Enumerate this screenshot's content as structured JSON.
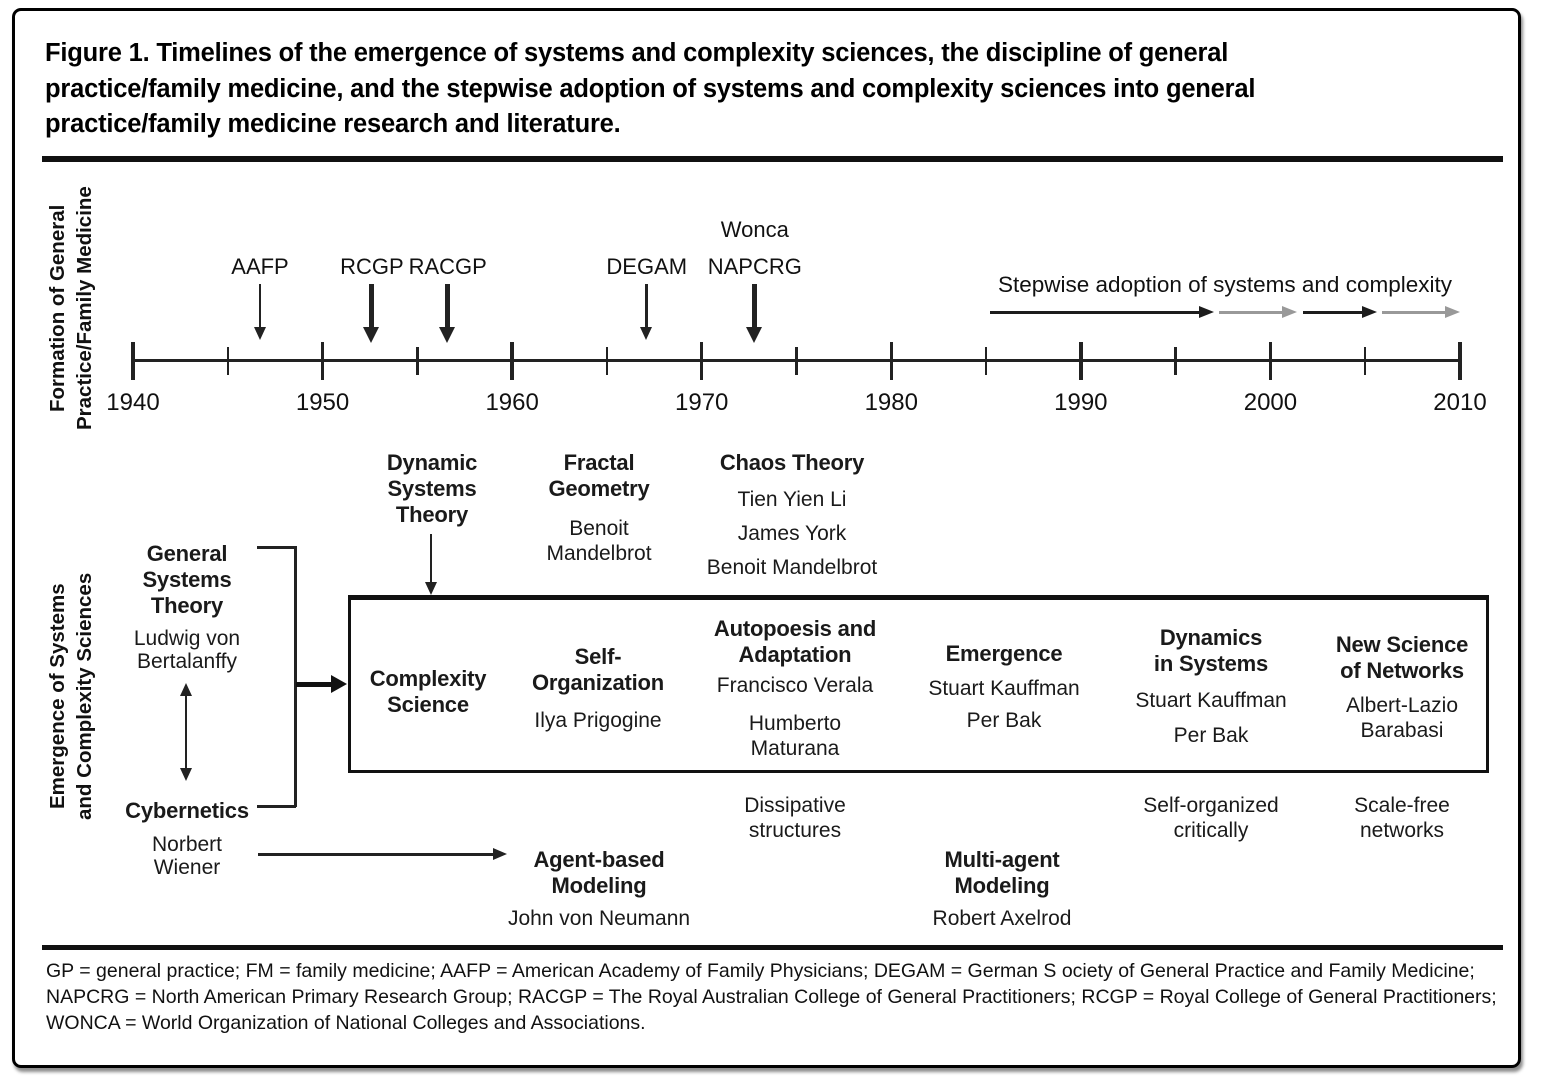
{
  "colors": {
    "ink": "#1a1a1a",
    "line": "#222222",
    "dark_arrow": "#1c1c1c",
    "gray_arrow": "#999999",
    "background": "#ffffff"
  },
  "title": {
    "lines": [
      "Figure 1. Timelines of the emergence of systems and complexity sciences, the discipline of general",
      "practice/family medicine, and the stepwise adoption of systems and complexity sciences into general",
      "practice/family medicine research and literature."
    ]
  },
  "top_section": {
    "side_label_lines": [
      "Formation of General",
      "Practice/Family Medicine"
    ],
    "timeline": {
      "start_year": 1940,
      "end_year": 2010,
      "minor_step": 5,
      "label_step": 10,
      "year_labels": [
        "1940",
        "1950",
        "1960",
        "1970",
        "1980",
        "1990",
        "2000",
        "2010"
      ]
    },
    "events": [
      {
        "label_lines": [
          "AAFP"
        ],
        "year": 1946.7,
        "weight": "thin"
      },
      {
        "label_lines": [
          "RCGP"
        ],
        "year": 1952.6,
        "weight": "thick"
      },
      {
        "label_lines": [
          "RACGP"
        ],
        "year": 1956.6,
        "weight": "thick"
      },
      {
        "label_lines": [
          "DEGAM"
        ],
        "year": 1967.1,
        "weight": "thin"
      },
      {
        "label_lines": [
          "Wonca",
          "NAPCRG"
        ],
        "year": 1972.8,
        "weight": "thick"
      }
    ],
    "stepwise_adoption": {
      "label": "Stepwise adoption of systems and complexity",
      "arrows": [
        {
          "from_year": 1985.2,
          "to_year": 1997.0,
          "tone": "dark"
        },
        {
          "from_year": 1997.3,
          "to_year": 2001.4,
          "tone": "gray"
        },
        {
          "from_year": 2001.7,
          "to_year": 2005.6,
          "tone": "dark"
        },
        {
          "from_year": 2005.9,
          "to_year": 2010.0,
          "tone": "gray"
        }
      ]
    }
  },
  "bottom_section": {
    "side_label_lines": [
      "Emergence of Systems",
      "and Complexity Sciences"
    ],
    "left_column": {
      "general_systems_theory": {
        "heading_lines": [
          "General",
          "Systems",
          "Theory"
        ],
        "person_lines": [
          "Ludwig von",
          "Bertalanffy"
        ]
      },
      "cybernetics": {
        "heading_lines": [
          "Cybernetics"
        ],
        "person_lines": [
          "Norbert",
          "Wiener"
        ]
      }
    },
    "pre_box_concepts": [
      {
        "heading_lines": [
          "Dynamic",
          "Systems",
          "Theory"
        ],
        "people": []
      },
      {
        "heading_lines": [
          "Fractal",
          "Geometry"
        ],
        "people": [
          [
            "Benoit",
            "Mandelbrot"
          ]
        ]
      },
      {
        "heading_lines": [
          "Chaos Theory"
        ],
        "people": [
          [
            "Tien Yien Li"
          ],
          [
            "James York"
          ],
          [
            "Benoit Mandelbrot"
          ]
        ]
      }
    ],
    "box_concepts": [
      {
        "heading_lines": [
          "Complexity",
          "Science"
        ],
        "people": []
      },
      {
        "heading_lines": [
          "Self-",
          "Organization"
        ],
        "people": [
          [
            "Ilya Prigogine"
          ]
        ]
      },
      {
        "heading_lines": [
          "Autopoesis and",
          "Adaptation"
        ],
        "people": [
          [
            "Francisco Verala"
          ],
          [
            "Humberto",
            "Maturana"
          ]
        ]
      },
      {
        "heading_lines": [
          "Emergence"
        ],
        "people": [
          [
            "Stuart Kauffman"
          ],
          [
            "Per Bak"
          ]
        ]
      },
      {
        "heading_lines": [
          "Dynamics",
          "in Systems"
        ],
        "people": [
          [
            "Stuart Kauffman"
          ],
          [
            "Per Bak"
          ]
        ]
      },
      {
        "heading_lines": [
          "New Science",
          "of Networks"
        ],
        "people": [
          [
            "Albert-Lazio",
            "Barabasi"
          ]
        ]
      }
    ],
    "below_box_notes": [
      {
        "lines": [
          "Dissipative",
          "structures"
        ]
      },
      {
        "lines": [
          "Self-organized",
          "critically"
        ]
      },
      {
        "lines": [
          "Scale-free",
          "networks"
        ]
      }
    ],
    "modeling_concepts": [
      {
        "heading_lines": [
          "Agent-based",
          "Modeling"
        ],
        "people": [
          [
            "John von Neumann"
          ]
        ]
      },
      {
        "heading_lines": [
          "Multi-agent",
          "Modeling"
        ],
        "people": [
          [
            "Robert Axelrod"
          ]
        ]
      }
    ]
  },
  "footnote": {
    "lines": [
      "GP = general practice; FM = family medicine; AAFP = American Academy of Family Physicians; DEGAM = German S ociety of General Practice and Family Medicine;",
      "NAPCRG = North American Primary Research Group; RACGP = The Royal Australian College of General Practitioners; RCGP = Royal College of General Practitioners;",
      "WONCA = World Organization of National Colleges and Associations."
    ]
  }
}
